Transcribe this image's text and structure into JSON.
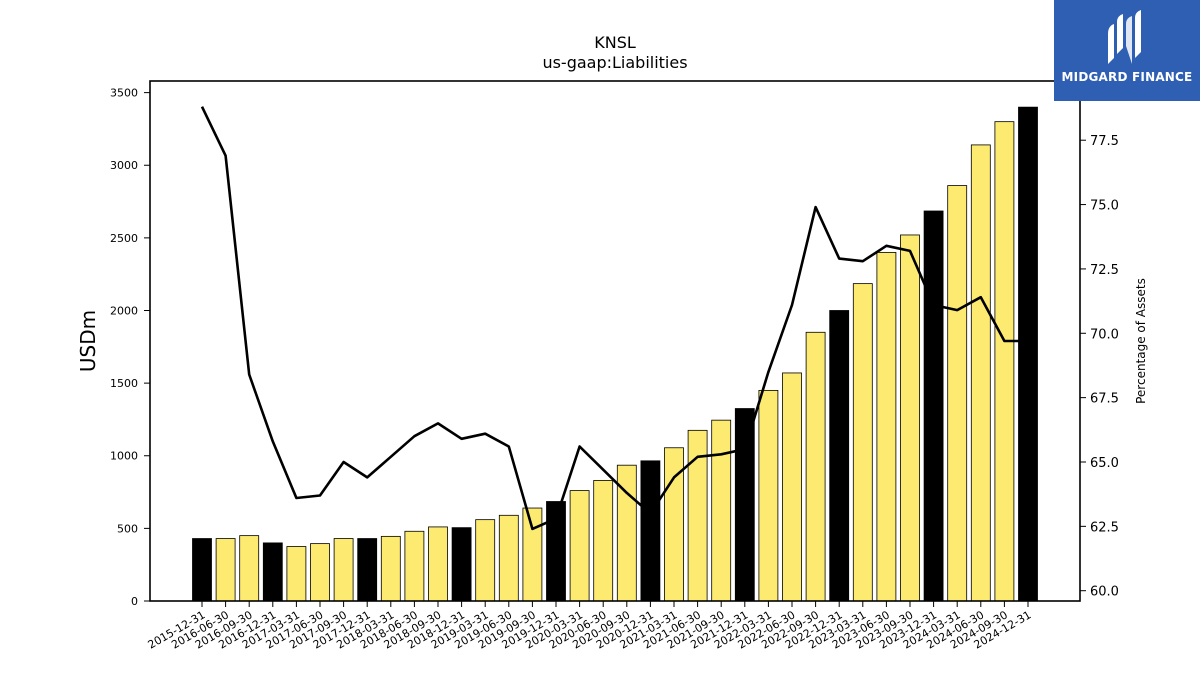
{
  "brand": {
    "name": "MIDGARD FINANCE",
    "icon": "midgard-logo-icon",
    "bg_color": "#2f5fb3"
  },
  "chart_data": {
    "type": "bar+line",
    "title": "KNSL",
    "subtitle": "us-gaap:Liabilities",
    "ylabel": "USDm",
    "y2label": "Percentage of Assets",
    "ylim": [
      0,
      3580
    ],
    "y2lim": [
      59.6,
      79.8
    ],
    "yticks": [
      0,
      500,
      1000,
      1500,
      2000,
      2500,
      3000,
      3500
    ],
    "y2ticks": [
      60.0,
      62.5,
      65.0,
      67.5,
      70.0,
      72.5,
      75.0,
      77.5
    ],
    "colors": {
      "annual_bar": "#000000",
      "quarter_bar": "#fdeb71",
      "line": "#000000"
    },
    "categories": [
      "2015-12-31",
      "2016-06-30",
      "2016-09-30",
      "2016-12-31",
      "2017-03-31",
      "2017-06-30",
      "2017-09-30",
      "2017-12-31",
      "2018-03-31",
      "2018-06-30",
      "2018-09-30",
      "2018-12-31",
      "2019-03-31",
      "2019-06-30",
      "2019-09-30",
      "2019-12-31",
      "2020-03-31",
      "2020-06-30",
      "2020-09-30",
      "2020-12-31",
      "2021-03-31",
      "2021-06-30",
      "2021-09-30",
      "2021-12-31",
      "2022-03-31",
      "2022-06-30",
      "2022-09-30",
      "2022-12-31",
      "2023-03-31",
      "2023-06-30",
      "2023-09-30",
      "2023-12-31",
      "2024-03-31",
      "2024-06-30",
      "2024-09-30",
      "2024-12-31"
    ],
    "annual": [
      true,
      false,
      false,
      true,
      false,
      false,
      false,
      true,
      false,
      false,
      false,
      true,
      false,
      false,
      false,
      true,
      false,
      false,
      false,
      true,
      false,
      false,
      false,
      true,
      false,
      false,
      false,
      true,
      false,
      false,
      false,
      true,
      false,
      false,
      false,
      true
    ],
    "series": [
      {
        "name": "USDm",
        "type": "bar",
        "values": [
          430,
          430,
          450,
          400,
          375,
          395,
          430,
          430,
          445,
          480,
          510,
          505,
          560,
          590,
          640,
          685,
          760,
          830,
          935,
          965,
          1055,
          1175,
          1245,
          1325,
          1450,
          1570,
          1850,
          2000,
          2185,
          2400,
          2520,
          2685,
          2860,
          3140,
          3300,
          3400
        ]
      },
      {
        "name": "Percentage of Assets",
        "type": "line",
        "values": [
          78.8,
          76.9,
          68.4,
          65.8,
          63.6,
          63.7,
          65.0,
          64.4,
          65.2,
          66.0,
          66.5,
          65.9,
          66.1,
          65.6,
          62.4,
          62.8,
          65.6,
          64.7,
          63.8,
          63.0,
          64.4,
          65.2,
          65.3,
          65.5,
          68.5,
          71.1,
          74.9,
          72.9,
          72.8,
          73.4,
          73.2,
          71.1,
          70.9,
          71.4,
          69.7,
          69.7
        ]
      }
    ]
  }
}
